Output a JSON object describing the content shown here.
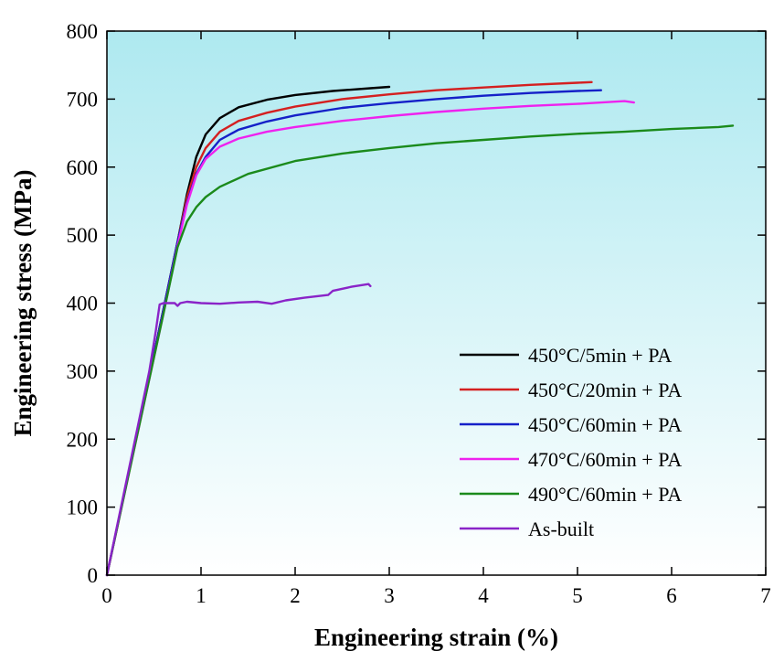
{
  "chart_data": {
    "type": "line",
    "xlabel": "Engineering strain (%)",
    "ylabel": "Engineering stress (MPa)",
    "xlim": [
      0,
      7
    ],
    "ylim": [
      0,
      800
    ],
    "xticks": [
      0,
      1,
      2,
      3,
      4,
      5,
      6,
      7
    ],
    "yticks": [
      0,
      100,
      200,
      300,
      400,
      500,
      600,
      700,
      800
    ],
    "grid": false,
    "legend_position": "bottom-right",
    "background_gradient": [
      "#aee9f0",
      "#ffffff"
    ],
    "series": [
      {
        "name": "450°C/5min + PA",
        "color": "#000000",
        "x": [
          0,
          0.2,
          0.4,
          0.6,
          0.75,
          0.85,
          0.95,
          1.05,
          1.2,
          1.4,
          1.7,
          2.0,
          2.4,
          2.8,
          3.0
        ],
        "y": [
          0,
          130,
          260,
          390,
          490,
          560,
          615,
          648,
          672,
          688,
          699,
          706,
          712,
          716,
          718
        ]
      },
      {
        "name": "450°C/20min + PA",
        "color": "#d42020",
        "x": [
          0,
          0.2,
          0.4,
          0.6,
          0.75,
          0.85,
          0.95,
          1.05,
          1.2,
          1.4,
          1.7,
          2.0,
          2.5,
          3.0,
          3.5,
          4.0,
          4.5,
          5.0,
          5.15
        ],
        "y": [
          0,
          130,
          260,
          390,
          490,
          555,
          600,
          628,
          652,
          668,
          680,
          689,
          700,
          707,
          713,
          717,
          721,
          724,
          725
        ]
      },
      {
        "name": "450°C/60min + PA",
        "color": "#1520c8",
        "x": [
          0,
          0.2,
          0.4,
          0.6,
          0.75,
          0.85,
          0.95,
          1.05,
          1.2,
          1.4,
          1.7,
          2.0,
          2.5,
          3.0,
          3.5,
          4.0,
          4.5,
          5.0,
          5.25
        ],
        "y": [
          0,
          130,
          260,
          390,
          490,
          548,
          590,
          615,
          640,
          655,
          667,
          676,
          687,
          694,
          700,
          705,
          709,
          712,
          713
        ]
      },
      {
        "name": "470°C/60min + PA",
        "color": "#ee22ee",
        "x": [
          0,
          0.2,
          0.4,
          0.6,
          0.75,
          0.85,
          0.95,
          1.05,
          1.2,
          1.4,
          1.7,
          2.0,
          2.5,
          3.0,
          3.5,
          4.0,
          4.5,
          5.0,
          5.5,
          5.6
        ],
        "y": [
          0,
          128,
          256,
          384,
          484,
          545,
          588,
          612,
          630,
          642,
          652,
          659,
          668,
          675,
          681,
          686,
          690,
          693,
          697,
          695
        ]
      },
      {
        "name": "490°C/60min + PA",
        "color": "#1b8a1b",
        "x": [
          0,
          0.2,
          0.4,
          0.6,
          0.75,
          0.85,
          0.95,
          1.05,
          1.2,
          1.5,
          2.0,
          2.5,
          3.0,
          3.5,
          4.0,
          4.5,
          5.0,
          5.5,
          6.0,
          6.5,
          6.65
        ],
        "y": [
          0,
          128,
          256,
          384,
          482,
          520,
          541,
          556,
          571,
          590,
          609,
          620,
          628,
          635,
          640,
          645,
          649,
          652,
          656,
          659,
          661
        ]
      },
      {
        "name": "As-built",
        "color": "#8a24c8",
        "x": [
          0,
          0.15,
          0.3,
          0.45,
          0.52,
          0.56,
          0.6,
          0.72,
          0.75,
          0.78,
          0.85,
          1.0,
          1.2,
          1.4,
          1.6,
          1.75,
          1.9,
          2.1,
          2.35,
          2.4,
          2.6,
          2.78,
          2.8
        ],
        "y": [
          0,
          100,
          200,
          300,
          360,
          398,
          400,
          400,
          396,
          400,
          402,
          400,
          399,
          401,
          402,
          399,
          404,
          408,
          412,
          418,
          424,
          428,
          425
        ]
      }
    ]
  }
}
